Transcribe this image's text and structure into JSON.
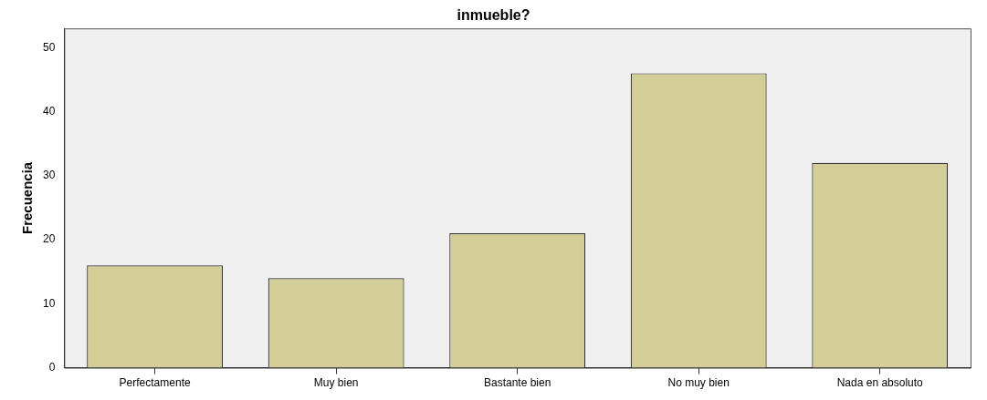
{
  "chart_data": {
    "type": "bar",
    "title": "inmueble?",
    "ylabel": "Frecuencia",
    "categories": [
      "Perfectamente",
      "Muy bien",
      "Bastante bien",
      "No muy bien",
      "Nada en absoluto"
    ],
    "values": [
      16,
      14,
      21,
      46,
      32
    ],
    "color": "#d3ce98",
    "ylim": [
      0,
      53
    ],
    "yticks": [
      0,
      10,
      20,
      30,
      40,
      50
    ],
    "grid": false,
    "legend": false
  }
}
